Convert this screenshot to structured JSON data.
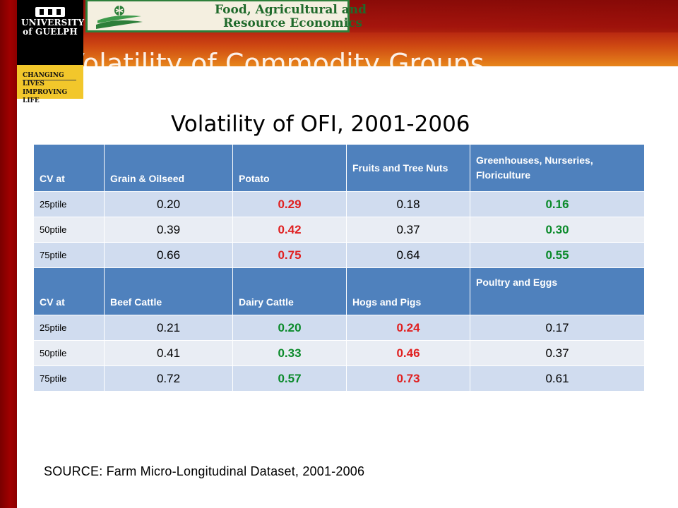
{
  "header": {
    "university_name": "UNIVERSITY of GUELPH",
    "tagline_line1": "CHANGING LIVES",
    "tagline_line2": "IMPROVING LIFE",
    "department_line1": "Food, Agricultural and",
    "department_line2": "Resource Economics",
    "slide_title": "Volatility of Commodity Groups"
  },
  "colors": {
    "left_bar": "#8c0000",
    "header_cells": "#4f81bd",
    "row_odd": "#d0dcef",
    "row_even": "#e9edf4",
    "highlight_red": "#e02020",
    "highlight_green": "#0a8a2a"
  },
  "main": {
    "subtitle": "Volatility of OFI, 2001-2006",
    "source": "SOURCE: Farm Micro-Longitudinal Dataset, 2001-2006"
  },
  "table": {
    "groups": [
      {
        "headers": [
          "CV at",
          "Grain & Oilseed",
          "Potato",
          "Fruits and Tree Nuts",
          "Greenhouses, Nurseries, Floriculture"
        ],
        "rows": [
          {
            "label": "25ptile",
            "values": [
              "0.20",
              "0.29",
              "0.18",
              "0.16"
            ]
          },
          {
            "label": "50ptile",
            "values": [
              "0.39",
              "0.42",
              "0.37",
              "0.30"
            ]
          },
          {
            "label": "75ptile",
            "values": [
              "0.66",
              "0.75",
              "0.64",
              "0.55"
            ]
          }
        ]
      },
      {
        "headers": [
          "CV at",
          "Beef Cattle",
          "Dairy Cattle",
          "Hogs and Pigs",
          "Poultry and Eggs"
        ],
        "rows": [
          {
            "label": "25ptile",
            "values": [
              "0.21",
              "0.20",
              "0.24",
              "0.17"
            ]
          },
          {
            "label": "50ptile",
            "values": [
              "0.41",
              "0.33",
              "0.46",
              "0.37"
            ]
          },
          {
            "label": "75ptile",
            "values": [
              "0.72",
              "0.57",
              "0.73",
              "0.61"
            ]
          }
        ]
      }
    ]
  }
}
